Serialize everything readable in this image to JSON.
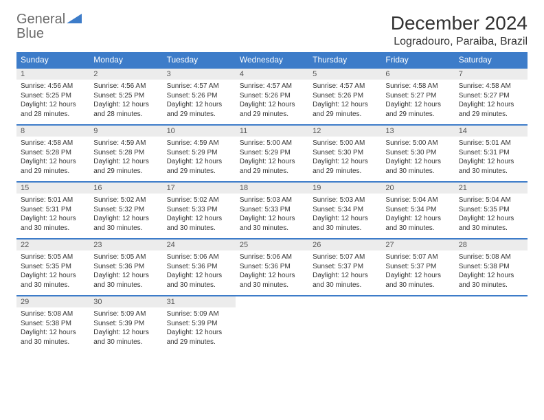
{
  "brand": {
    "part1": "General",
    "part2": "Blue"
  },
  "title": "December 2024",
  "location": "Logradouro, Paraiba, Brazil",
  "colors": {
    "header_bg": "#3d7cc9",
    "daynum_bg": "#ececec",
    "border": "#3d7cc9",
    "text": "#333333",
    "brand_gray": "#6b6b6b",
    "brand_blue": "#3d7cc9"
  },
  "layout": {
    "columns": 7,
    "weeks": 5,
    "cell_font_size_pt": 7.5,
    "header_font_size_pt": 9,
    "title_font_size_pt": 21,
    "location_font_size_pt": 12
  },
  "day_headers": [
    "Sunday",
    "Monday",
    "Tuesday",
    "Wednesday",
    "Thursday",
    "Friday",
    "Saturday"
  ],
  "weeks": [
    [
      {
        "n": "1",
        "sr": "4:56 AM",
        "ss": "5:25 PM",
        "dl": "12 hours and 28 minutes."
      },
      {
        "n": "2",
        "sr": "4:56 AM",
        "ss": "5:25 PM",
        "dl": "12 hours and 28 minutes."
      },
      {
        "n": "3",
        "sr": "4:57 AM",
        "ss": "5:26 PM",
        "dl": "12 hours and 29 minutes."
      },
      {
        "n": "4",
        "sr": "4:57 AM",
        "ss": "5:26 PM",
        "dl": "12 hours and 29 minutes."
      },
      {
        "n": "5",
        "sr": "4:57 AM",
        "ss": "5:26 PM",
        "dl": "12 hours and 29 minutes."
      },
      {
        "n": "6",
        "sr": "4:58 AM",
        "ss": "5:27 PM",
        "dl": "12 hours and 29 minutes."
      },
      {
        "n": "7",
        "sr": "4:58 AM",
        "ss": "5:27 PM",
        "dl": "12 hours and 29 minutes."
      }
    ],
    [
      {
        "n": "8",
        "sr": "4:58 AM",
        "ss": "5:28 PM",
        "dl": "12 hours and 29 minutes."
      },
      {
        "n": "9",
        "sr": "4:59 AM",
        "ss": "5:28 PM",
        "dl": "12 hours and 29 minutes."
      },
      {
        "n": "10",
        "sr": "4:59 AM",
        "ss": "5:29 PM",
        "dl": "12 hours and 29 minutes."
      },
      {
        "n": "11",
        "sr": "5:00 AM",
        "ss": "5:29 PM",
        "dl": "12 hours and 29 minutes."
      },
      {
        "n": "12",
        "sr": "5:00 AM",
        "ss": "5:30 PM",
        "dl": "12 hours and 29 minutes."
      },
      {
        "n": "13",
        "sr": "5:00 AM",
        "ss": "5:30 PM",
        "dl": "12 hours and 30 minutes."
      },
      {
        "n": "14",
        "sr": "5:01 AM",
        "ss": "5:31 PM",
        "dl": "12 hours and 30 minutes."
      }
    ],
    [
      {
        "n": "15",
        "sr": "5:01 AM",
        "ss": "5:31 PM",
        "dl": "12 hours and 30 minutes."
      },
      {
        "n": "16",
        "sr": "5:02 AM",
        "ss": "5:32 PM",
        "dl": "12 hours and 30 minutes."
      },
      {
        "n": "17",
        "sr": "5:02 AM",
        "ss": "5:33 PM",
        "dl": "12 hours and 30 minutes."
      },
      {
        "n": "18",
        "sr": "5:03 AM",
        "ss": "5:33 PM",
        "dl": "12 hours and 30 minutes."
      },
      {
        "n": "19",
        "sr": "5:03 AM",
        "ss": "5:34 PM",
        "dl": "12 hours and 30 minutes."
      },
      {
        "n": "20",
        "sr": "5:04 AM",
        "ss": "5:34 PM",
        "dl": "12 hours and 30 minutes."
      },
      {
        "n": "21",
        "sr": "5:04 AM",
        "ss": "5:35 PM",
        "dl": "12 hours and 30 minutes."
      }
    ],
    [
      {
        "n": "22",
        "sr": "5:05 AM",
        "ss": "5:35 PM",
        "dl": "12 hours and 30 minutes."
      },
      {
        "n": "23",
        "sr": "5:05 AM",
        "ss": "5:36 PM",
        "dl": "12 hours and 30 minutes."
      },
      {
        "n": "24",
        "sr": "5:06 AM",
        "ss": "5:36 PM",
        "dl": "12 hours and 30 minutes."
      },
      {
        "n": "25",
        "sr": "5:06 AM",
        "ss": "5:36 PM",
        "dl": "12 hours and 30 minutes."
      },
      {
        "n": "26",
        "sr": "5:07 AM",
        "ss": "5:37 PM",
        "dl": "12 hours and 30 minutes."
      },
      {
        "n": "27",
        "sr": "5:07 AM",
        "ss": "5:37 PM",
        "dl": "12 hours and 30 minutes."
      },
      {
        "n": "28",
        "sr": "5:08 AM",
        "ss": "5:38 PM",
        "dl": "12 hours and 30 minutes."
      }
    ],
    [
      {
        "n": "29",
        "sr": "5:08 AM",
        "ss": "5:38 PM",
        "dl": "12 hours and 30 minutes."
      },
      {
        "n": "30",
        "sr": "5:09 AM",
        "ss": "5:39 PM",
        "dl": "12 hours and 30 minutes."
      },
      {
        "n": "31",
        "sr": "5:09 AM",
        "ss": "5:39 PM",
        "dl": "12 hours and 29 minutes."
      },
      null,
      null,
      null,
      null
    ]
  ],
  "labels": {
    "sunrise": "Sunrise:",
    "sunset": "Sunset:",
    "daylight": "Daylight:"
  }
}
